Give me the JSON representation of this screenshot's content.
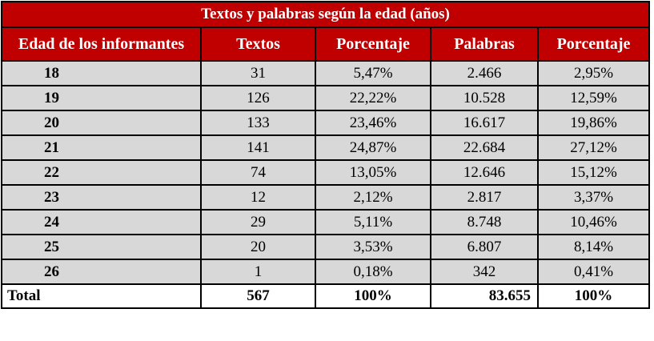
{
  "table": {
    "title": "Textos y palabras según la edad (años)",
    "headers": [
      "Edad de los informantes",
      "Textos",
      "Porcentaje",
      "Palabras",
      "Porcentaje"
    ],
    "rows": [
      [
        "18",
        "31",
        "5,47%",
        "2.466",
        "2,95%"
      ],
      [
        "19",
        "126",
        "22,22%",
        "10.528",
        "12,59%"
      ],
      [
        "20",
        "133",
        "23,46%",
        "16.617",
        "19,86%"
      ],
      [
        "21",
        "141",
        "24,87%",
        "22.684",
        "27,12%"
      ],
      [
        "22",
        "74",
        "13,05%",
        "12.646",
        "15,12%"
      ],
      [
        "23",
        "12",
        "2,12%",
        "2.817",
        "3,37%"
      ],
      [
        "24",
        "29",
        "5,11%",
        "8.748",
        "10,46%"
      ],
      [
        "25",
        "20",
        "3,53%",
        "6.807",
        "8,14%"
      ],
      [
        "26",
        "1",
        "0,18%",
        "342",
        "0,41%"
      ]
    ],
    "total": [
      "Total",
      "567",
      "100%",
      "83.655",
      "100%"
    ]
  },
  "colors": {
    "header_bg": "#c00000",
    "row_bg": "#d8d8d8"
  }
}
